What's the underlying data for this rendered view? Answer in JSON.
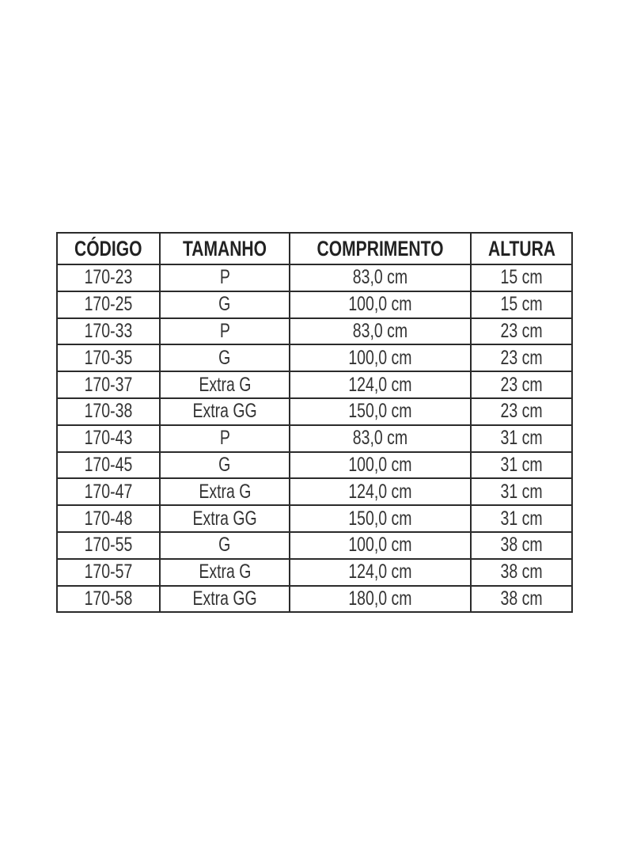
{
  "table": {
    "headers": [
      "CÓDIGO",
      "TAMANHO",
      "COMPRIMENTO",
      "ALTURA"
    ],
    "rows": [
      [
        "170-23",
        "P",
        "83,0 cm",
        "15 cm"
      ],
      [
        "170-25",
        "G",
        "100,0 cm",
        "15 cm"
      ],
      [
        "170-33",
        "P",
        "83,0 cm",
        "23 cm"
      ],
      [
        "170-35",
        "G",
        "100,0 cm",
        "23 cm"
      ],
      [
        "170-37",
        "Extra G",
        "124,0 cm",
        "23 cm"
      ],
      [
        "170-38",
        "Extra GG",
        "150,0 cm",
        "23 cm"
      ],
      [
        "170-43",
        "P",
        "83,0 cm",
        "31 cm"
      ],
      [
        "170-45",
        "G",
        "100,0 cm",
        "31 cm"
      ],
      [
        "170-47",
        "Extra G",
        "124,0 cm",
        "31 cm"
      ],
      [
        "170-48",
        "Extra GG",
        "150,0 cm",
        "31 cm"
      ],
      [
        "170-55",
        "G",
        "100,0 cm",
        "38 cm"
      ],
      [
        "170-57",
        "Extra G",
        "124,0 cm",
        "38 cm"
      ],
      [
        "170-58",
        "Extra GG",
        "180,0 cm",
        "38 cm"
      ]
    ]
  }
}
